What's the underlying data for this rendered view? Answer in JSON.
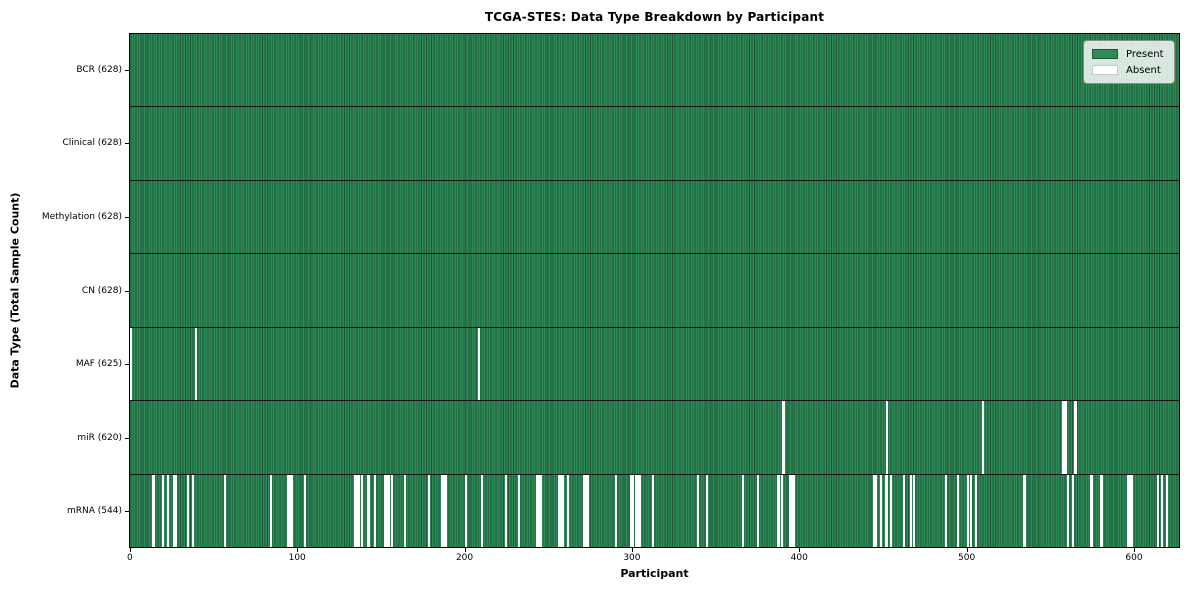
{
  "figure": {
    "title": "TCGA-STES: Data Type Breakdown by Participant",
    "xlabel": "Participant",
    "ylabel": "Data Type (Total Sample Count)"
  },
  "legend": {
    "items": [
      {
        "label": "Present",
        "color": "#2e8b57",
        "edge": "#1b5737"
      },
      {
        "label": "Absent",
        "color": "#ffffff",
        "edge": "#c8c8c8"
      }
    ]
  },
  "chart_data": {
    "type": "heatmap",
    "title": "TCGA-STES: Data Type Breakdown by Participant",
    "xlabel": "Participant",
    "ylabel": "Data Type (Total Sample Count)",
    "n_participants": 628,
    "x_ticks": [
      0,
      100,
      200,
      300,
      400,
      500,
      600
    ],
    "legend_position": "upper right",
    "grid": false,
    "present_color": "#2e8b57",
    "present_edge_color": "#1b5737",
    "absent_color": "#ffffff",
    "rows": [
      {
        "label": "BCR (628)",
        "data_type": "BCR",
        "present_count": 628,
        "absent_count": 0,
        "absent_participants": []
      },
      {
        "label": "Clinical (628)",
        "data_type": "Clinical",
        "present_count": 628,
        "absent_count": 0,
        "absent_participants": []
      },
      {
        "label": "Methylation (628)",
        "data_type": "Methylation",
        "present_count": 628,
        "absent_count": 0,
        "absent_participants": []
      },
      {
        "label": "CN (628)",
        "data_type": "CN",
        "present_count": 628,
        "absent_count": 0,
        "absent_participants": []
      },
      {
        "label": "MAF (625)",
        "data_type": "MAF",
        "present_count": 625,
        "absent_count": 3,
        "absent_participants": [
          0,
          39,
          208
        ]
      },
      {
        "label": "miR (620)",
        "data_type": "miR",
        "present_count": 620,
        "absent_count": 8,
        "absent_participants": [
          390,
          452,
          509,
          557,
          558,
          559,
          564,
          565
        ]
      },
      {
        "label": "mRNA (544)",
        "data_type": "mRNA",
        "present_count": 544,
        "absent_count": 84,
        "absent_participants": [
          13,
          14,
          19,
          22,
          26,
          27,
          34,
          37,
          56,
          84,
          94,
          95,
          96,
          104,
          134,
          135,
          136,
          138,
          142,
          146,
          152,
          153,
          154,
          156,
          164,
          178,
          186,
          187,
          188,
          200,
          210,
          224,
          232,
          243,
          244,
          245,
          256,
          257,
          258,
          261,
          271,
          272,
          273,
          290,
          299,
          300,
          302,
          303,
          304,
          312,
          339,
          344,
          366,
          375,
          387,
          389,
          394,
          395,
          396,
          444,
          445,
          448,
          451,
          452,
          454,
          462,
          466,
          468,
          487,
          494,
          500,
          502,
          505,
          534,
          560,
          563,
          574,
          580,
          596,
          597,
          598,
          614,
          616,
          619
        ]
      }
    ]
  }
}
